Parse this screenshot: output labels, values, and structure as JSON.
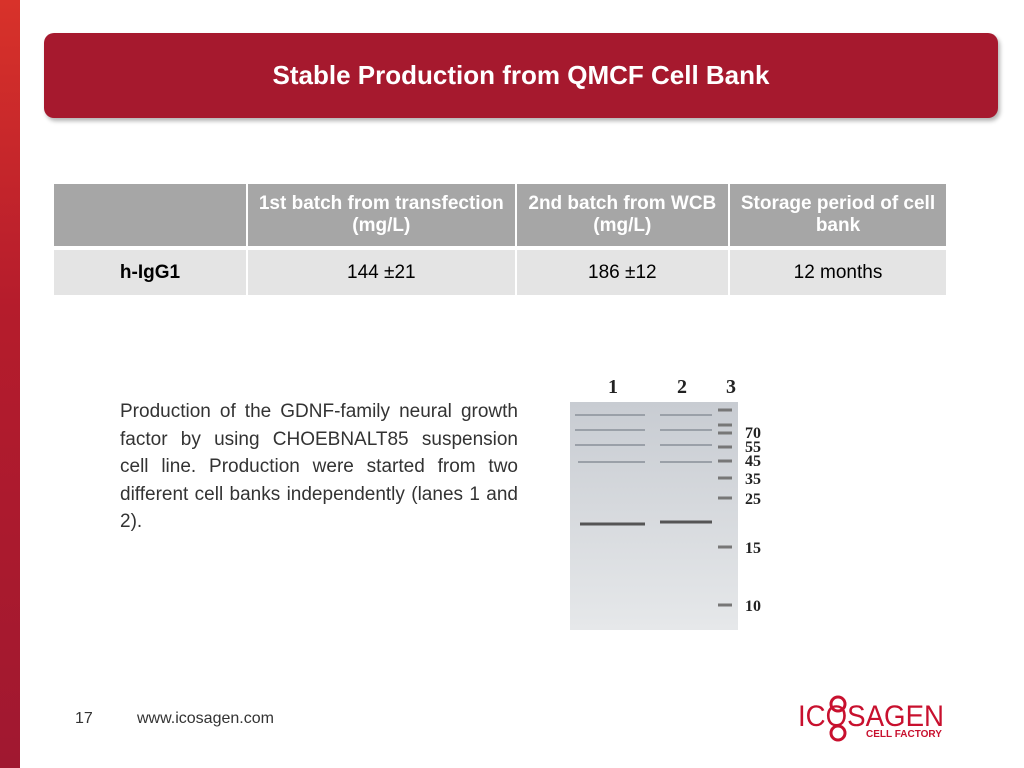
{
  "header": {
    "title": "Stable Production from QMCF Cell Bank"
  },
  "table": {
    "columns": [
      "1st batch from transfection (mg/L)",
      "2nd batch from WCB (mg/L)",
      "Storage period of cell bank"
    ],
    "rows": [
      [
        "h-IgG1",
        "144 ±21",
        "186 ±12",
        "12 months"
      ]
    ]
  },
  "description": "Production of the GDNF-family neural growth factor by using CHOEBNALT85 suspension cell line. Production were started from two different cell banks independently (lanes 1 and 2).",
  "gel": {
    "lanes": [
      "1",
      "2",
      "3"
    ],
    "markers": [
      "70",
      "55",
      "45",
      "35",
      "25",
      "15",
      "10"
    ]
  },
  "footer": {
    "page": "17",
    "url": "www.icosagen.com"
  },
  "logo": {
    "name": "ICOSAGEN",
    "tagline": "CELL FACTORY"
  }
}
